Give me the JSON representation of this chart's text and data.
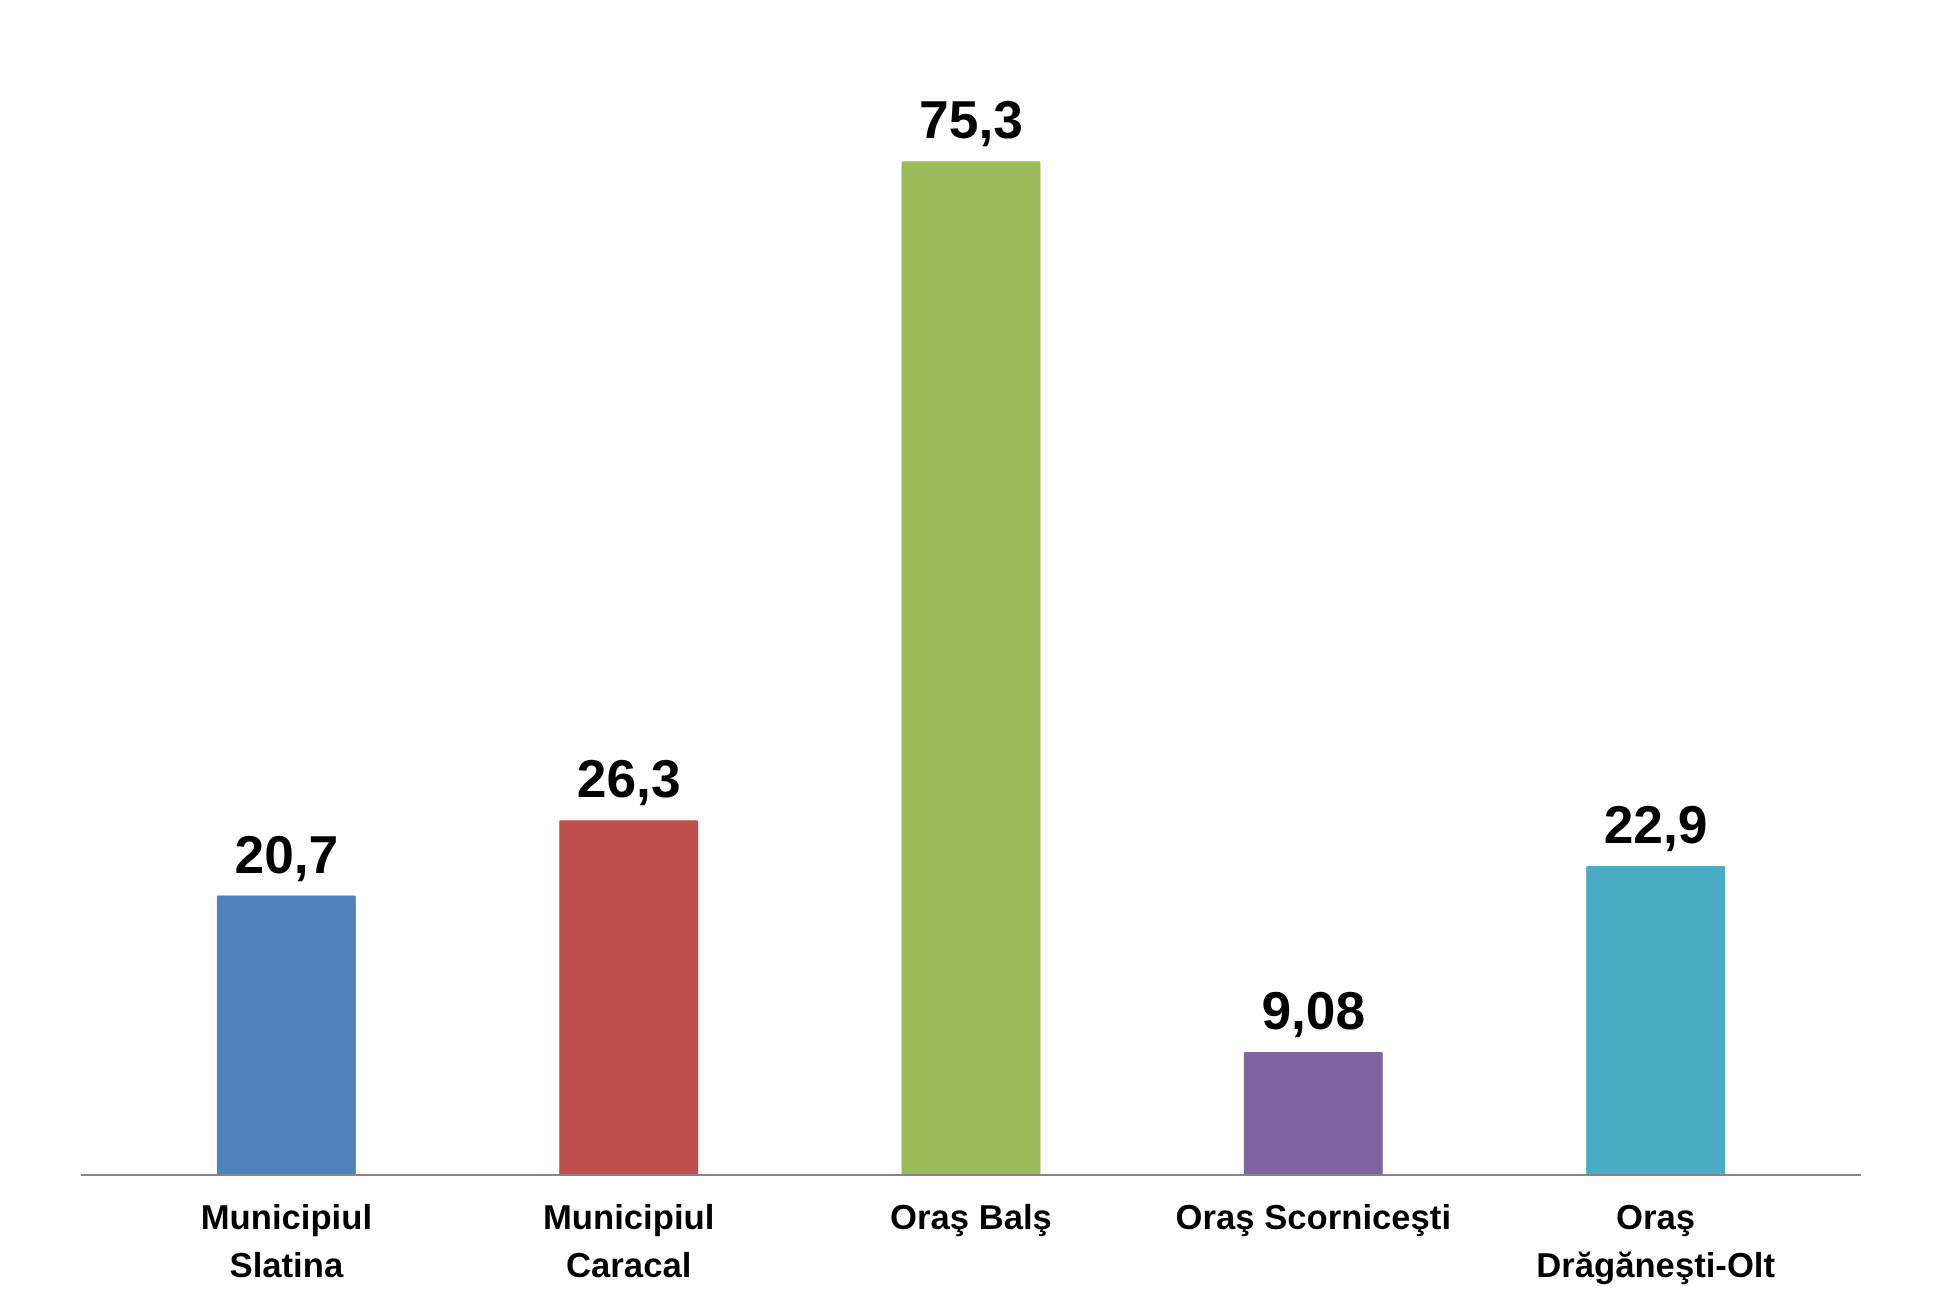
{
  "chart_data": {
    "type": "bar",
    "categories": [
      "Municipiul\nSlatina",
      "Municipiul\nCaracal",
      "Oraş Balş",
      "Oraş Scorniceşti",
      "Oraş\nDrăgăneşti-Olt"
    ],
    "values": [
      20.7,
      26.3,
      75.3,
      9.08,
      22.9
    ],
    "colors": [
      "#4f81bd",
      "#c0504d",
      "#9bbb59",
      "#8064a2",
      "#4bacc6"
    ],
    "value_labels": [
      "20,7",
      "26,3",
      "75,3",
      "9,08",
      "22,9"
    ],
    "grid": false,
    "tick_labels": "x"
  }
}
